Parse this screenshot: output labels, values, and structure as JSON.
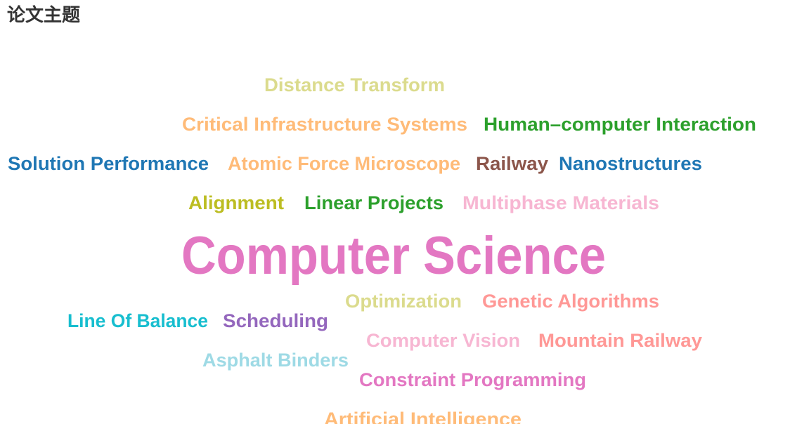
{
  "header": {
    "title": "论文主题"
  },
  "chart_data": {
    "type": "wordcloud",
    "title": "论文主题",
    "words": [
      {
        "text": "Distance Transform",
        "weight": 2,
        "color": "#dbdb8d"
      },
      {
        "text": "Critical Infrastructure Systems",
        "weight": 2,
        "color": "#ffbb78"
      },
      {
        "text": "Human–computer Interaction",
        "weight": 2,
        "color": "#2ca02c"
      },
      {
        "text": "Solution Performance",
        "weight": 2,
        "color": "#1f77b4"
      },
      {
        "text": "Atomic Force Microscope",
        "weight": 2,
        "color": "#ffbb78"
      },
      {
        "text": "Railway",
        "weight": 2,
        "color": "#8c564b"
      },
      {
        "text": "Nanostructures",
        "weight": 2,
        "color": "#1f77b4"
      },
      {
        "text": "Alignment",
        "weight": 2,
        "color": "#bcbd22"
      },
      {
        "text": "Linear Projects",
        "weight": 2,
        "color": "#2ca02c"
      },
      {
        "text": "Multiphase Materials",
        "weight": 2,
        "color": "#f7b6d2"
      },
      {
        "text": "Computer Science",
        "weight": 6,
        "color": "#e377c2"
      },
      {
        "text": "Optimization",
        "weight": 2,
        "color": "#dbdb8d"
      },
      {
        "text": "Genetic Algorithms",
        "weight": 2,
        "color": "#ff9896"
      },
      {
        "text": "Line Of Balance",
        "weight": 2,
        "color": "#17becf"
      },
      {
        "text": "Scheduling",
        "weight": 2,
        "color": "#9467bd"
      },
      {
        "text": "Computer Vision",
        "weight": 2,
        "color": "#f7b6d2"
      },
      {
        "text": "Mountain Railway",
        "weight": 2,
        "color": "#ff9896"
      },
      {
        "text": "Asphalt Binders",
        "weight": 2,
        "color": "#9edae5"
      },
      {
        "text": "Constraint Programming",
        "weight": 2,
        "color": "#e377c2"
      },
      {
        "text": "Artificial Intelligence",
        "weight": 2,
        "color": "#ffbb78"
      }
    ]
  }
}
